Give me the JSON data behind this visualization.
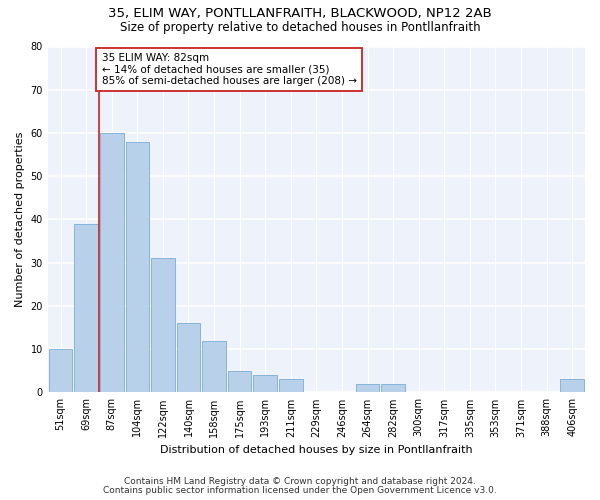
{
  "title1": "35, ELIM WAY, PONTLLANFRAITH, BLACKWOOD, NP12 2AB",
  "title2": "Size of property relative to detached houses in Pontllanfraith",
  "xlabel": "Distribution of detached houses by size in Pontllanfraith",
  "ylabel": "Number of detached properties",
  "categories": [
    "51sqm",
    "69sqm",
    "87sqm",
    "104sqm",
    "122sqm",
    "140sqm",
    "158sqm",
    "175sqm",
    "193sqm",
    "211sqm",
    "229sqm",
    "246sqm",
    "264sqm",
    "282sqm",
    "300sqm",
    "317sqm",
    "335sqm",
    "353sqm",
    "371sqm",
    "388sqm",
    "406sqm"
  ],
  "values": [
    10,
    39,
    60,
    58,
    31,
    16,
    12,
    5,
    4,
    3,
    0,
    0,
    2,
    2,
    0,
    0,
    0,
    0,
    0,
    0,
    3
  ],
  "bar_color": "#b8d0ea",
  "bar_edge_color": "#7aaed4",
  "highlight_color": "#cc2222",
  "annotation_line1": "35 ELIM WAY: 82sqm",
  "annotation_line2": "← 14% of detached houses are smaller (35)",
  "annotation_line3": "85% of semi-detached houses are larger (208) →",
  "annotation_box_color": "#ffffff",
  "annotation_box_edge": "#cc2222",
  "vline_x": 1.5,
  "ylim": [
    0,
    80
  ],
  "yticks": [
    0,
    10,
    20,
    30,
    40,
    50,
    60,
    70,
    80
  ],
  "footer1": "Contains HM Land Registry data © Crown copyright and database right 2024.",
  "footer2": "Contains public sector information licensed under the Open Government Licence v3.0.",
  "bg_color": "#eef2fb",
  "grid_color": "#ffffff",
  "title1_fontsize": 9.5,
  "title2_fontsize": 8.5,
  "xlabel_fontsize": 8,
  "ylabel_fontsize": 8,
  "tick_fontsize": 7,
  "footer_fontsize": 6.5,
  "annotation_fontsize": 7.5
}
